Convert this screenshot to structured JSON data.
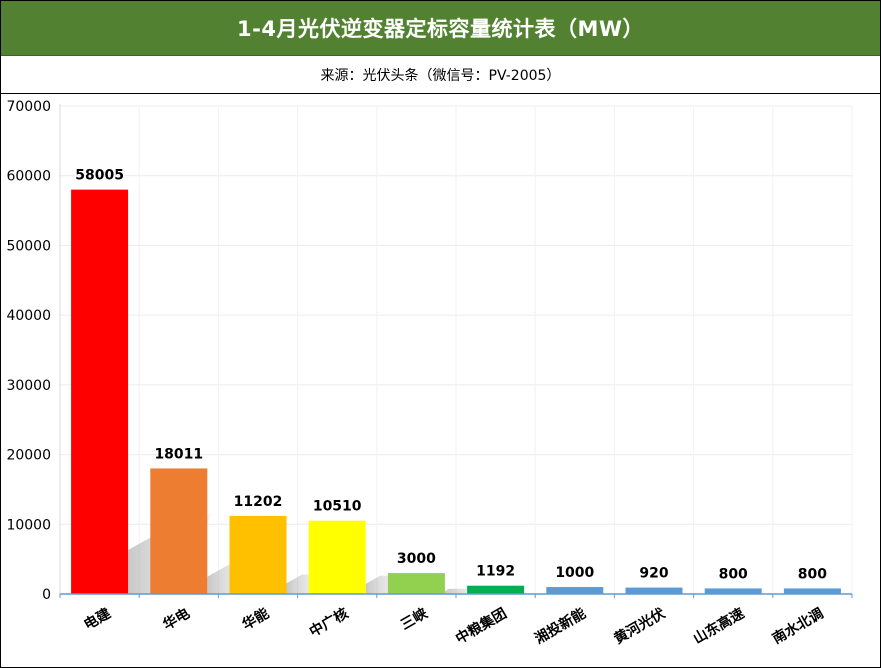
{
  "header": {
    "title": "1-4月光伏逆变器定标容量统计表（MW）",
    "subtitle": "来源：光伏头条（微信号：PV-2005）"
  },
  "chart_data": {
    "type": "bar",
    "categories": [
      "电建",
      "华电",
      "华能",
      "中广核",
      "三峡",
      "中粮集团",
      "湘投新能",
      "黄河光伏",
      "山东高速",
      "南水北调"
    ],
    "values": [
      58005,
      18011,
      11202,
      10510,
      3000,
      1192,
      1000,
      920,
      800,
      800
    ],
    "colors": [
      "#ff0000",
      "#ed7d31",
      "#ffc000",
      "#ffff00",
      "#92d050",
      "#00b050",
      "#5b9bd5",
      "#5b9bd5",
      "#5b9bd5",
      "#5b9bd5"
    ],
    "ylim": [
      0,
      70000
    ],
    "yticks": [
      0,
      10000,
      20000,
      30000,
      40000,
      50000,
      60000,
      70000
    ],
    "grid": true,
    "data_labels": true,
    "xlabel": "",
    "ylabel": ""
  }
}
